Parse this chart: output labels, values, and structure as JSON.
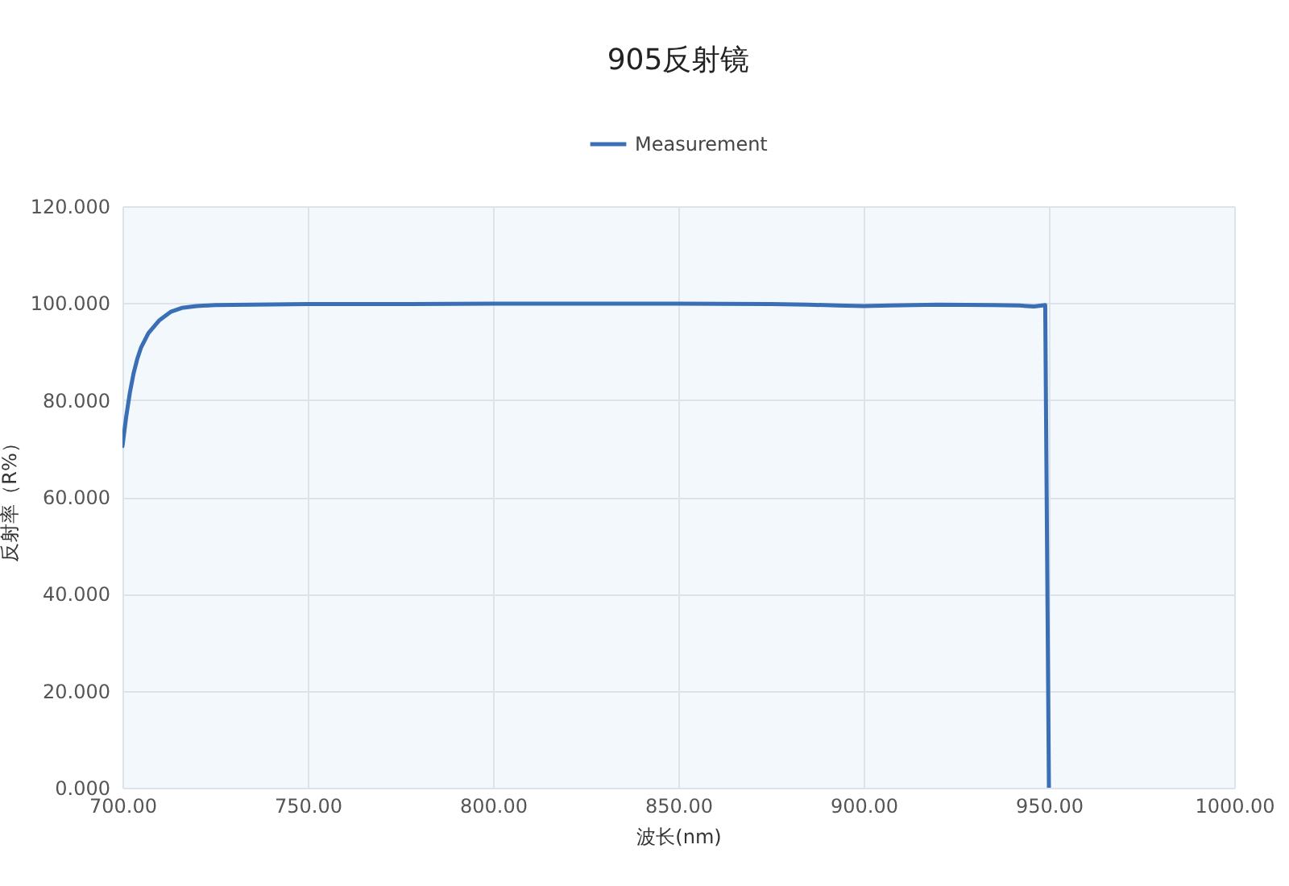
{
  "chart_data": {
    "type": "line",
    "title": "905反射镜",
    "xlabel": "波长(nm)",
    "ylabel": "反射率（R%）",
    "series": [
      {
        "name": "Measurement",
        "color": "#3a6eb5",
        "x": [
          700,
          701,
          702,
          703,
          704,
          705,
          707,
          710,
          713,
          716,
          720,
          725,
          735,
          750,
          775,
          800,
          825,
          850,
          875,
          885,
          893,
          900,
          907,
          920,
          935,
          942,
          946,
          949,
          950
        ],
        "values": [
          70.5,
          76.5,
          81.5,
          85.5,
          88.5,
          90.8,
          93.8,
          96.5,
          98.2,
          99.0,
          99.4,
          99.6,
          99.7,
          99.8,
          99.8,
          99.9,
          99.9,
          99.9,
          99.8,
          99.7,
          99.5,
          99.4,
          99.5,
          99.7,
          99.6,
          99.5,
          99.3,
          99.6,
          0
        ]
      }
    ],
    "xlim": [
      700,
      1000
    ],
    "ylim": [
      0,
      120
    ],
    "xticks": [
      {
        "value": 700,
        "label": "700.00"
      },
      {
        "value": 750,
        "label": "750.00"
      },
      {
        "value": 800,
        "label": "800.00"
      },
      {
        "value": 850,
        "label": "850.00"
      },
      {
        "value": 900,
        "label": "900.00"
      },
      {
        "value": 950,
        "label": "950.00"
      },
      {
        "value": 1000,
        "label": "1000.00"
      }
    ],
    "yticks": [
      {
        "value": 0,
        "label": "0.000"
      },
      {
        "value": 20,
        "label": "20.000"
      },
      {
        "value": 40,
        "label": "40.000"
      },
      {
        "value": 60,
        "label": "60.000"
      },
      {
        "value": 80,
        "label": "80.000"
      },
      {
        "value": 100,
        "label": "100.000"
      },
      {
        "value": 120,
        "label": "120.000"
      }
    ],
    "grid": true,
    "legend": "top",
    "marker": "none",
    "line_style": "solid"
  }
}
